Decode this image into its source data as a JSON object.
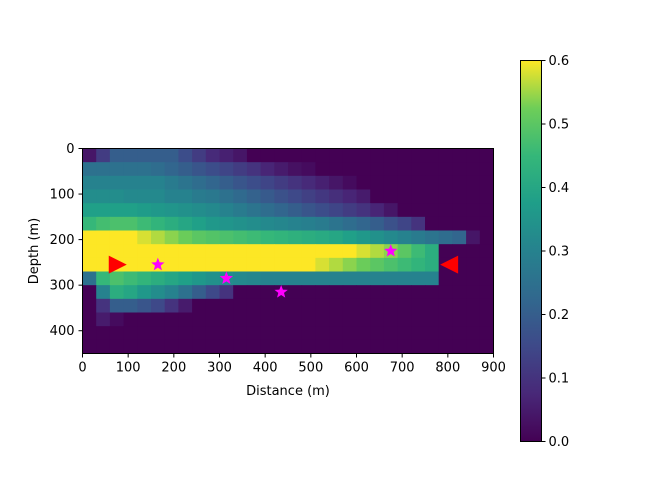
{
  "chart_data": {
    "type": "heatmap",
    "title": "",
    "xlabel": "Distance (m)",
    "ylabel": "Depth (m)",
    "xlim": [
      0,
      900
    ],
    "ylim": [
      450,
      0
    ],
    "xticks": [
      "0",
      "100",
      "200",
      "300",
      "400",
      "500",
      "600",
      "700",
      "800",
      "900"
    ],
    "yticks": [
      "0",
      "100",
      "200",
      "300",
      "400"
    ],
    "colormap": "viridis",
    "colorbar": {
      "range": [
        0,
        0.6
      ],
      "ticks": [
        "0.0",
        "0.1",
        "0.2",
        "0.3",
        "0.4",
        "0.5",
        "0.6"
      ]
    },
    "cell_size_m": 30,
    "grid_origin_m": [
      0,
      0
    ],
    "grid": [
      [
        0.04,
        0.12,
        0.2,
        0.2,
        0.2,
        0.2,
        0.2,
        0.16,
        0.12,
        0.08,
        0.06,
        0.04,
        0,
        0,
        0,
        0,
        0,
        0,
        0,
        0,
        0,
        0,
        0,
        0,
        0,
        0,
        0,
        0,
        0,
        0
      ],
      [
        0.25,
        0.25,
        0.25,
        0.25,
        0.25,
        0.24,
        0.22,
        0.2,
        0.18,
        0.16,
        0.14,
        0.12,
        0.1,
        0.07,
        0.05,
        0.03,
        0.02,
        0,
        0,
        0,
        0,
        0,
        0,
        0,
        0,
        0,
        0,
        0,
        0,
        0
      ],
      [
        0.3,
        0.3,
        0.3,
        0.3,
        0.3,
        0.3,
        0.28,
        0.26,
        0.24,
        0.22,
        0.2,
        0.18,
        0.16,
        0.14,
        0.12,
        0.1,
        0.08,
        0.06,
        0.04,
        0.02,
        0,
        0,
        0,
        0,
        0,
        0,
        0,
        0,
        0,
        0
      ],
      [
        0.33,
        0.33,
        0.33,
        0.32,
        0.32,
        0.32,
        0.3,
        0.3,
        0.28,
        0.27,
        0.25,
        0.23,
        0.21,
        0.19,
        0.17,
        0.15,
        0.13,
        0.11,
        0.09,
        0.07,
        0.05,
        0,
        0,
        0,
        0,
        0,
        0,
        0,
        0,
        0
      ],
      [
        0.38,
        0.38,
        0.38,
        0.38,
        0.37,
        0.36,
        0.35,
        0.34,
        0.33,
        0.32,
        0.3,
        0.28,
        0.26,
        0.24,
        0.22,
        0.2,
        0.18,
        0.16,
        0.14,
        0.12,
        0.1,
        0.07,
        0.04,
        0,
        0,
        0,
        0,
        0,
        0,
        0
      ],
      [
        0.45,
        0.47,
        0.48,
        0.48,
        0.46,
        0.44,
        0.42,
        0.4,
        0.38,
        0.36,
        0.35,
        0.34,
        0.33,
        0.32,
        0.31,
        0.3,
        0.29,
        0.28,
        0.26,
        0.24,
        0.22,
        0.2,
        0.17,
        0.14,
        0.1,
        0,
        0,
        0,
        0,
        0
      ],
      [
        0.6,
        0.6,
        0.6,
        0.6,
        0.58,
        0.56,
        0.54,
        0.52,
        0.5,
        0.49,
        0.48,
        0.47,
        0.46,
        0.45,
        0.44,
        0.43,
        0.42,
        0.41,
        0.4,
        0.38,
        0.36,
        0.34,
        0.32,
        0.3,
        0.28,
        0.26,
        0.24,
        0.22,
        0.04,
        0
      ],
      [
        0.6,
        0.6,
        0.6,
        0.6,
        0.6,
        0.6,
        0.6,
        0.6,
        0.6,
        0.6,
        0.6,
        0.6,
        0.6,
        0.6,
        0.6,
        0.6,
        0.6,
        0.6,
        0.6,
        0.6,
        0.58,
        0.56,
        0.54,
        0.5,
        0.46,
        0.42,
        0,
        0,
        0,
        0
      ],
      [
        0.6,
        0.6,
        0.6,
        0.6,
        0.6,
        0.6,
        0.6,
        0.6,
        0.6,
        0.6,
        0.6,
        0.6,
        0.6,
        0.6,
        0.6,
        0.6,
        0.6,
        0.58,
        0.56,
        0.54,
        0.52,
        0.5,
        0.48,
        0.46,
        0.44,
        0.42,
        0,
        0,
        0,
        0
      ],
      [
        0.25,
        0.45,
        0.48,
        0.46,
        0.44,
        0.42,
        0.4,
        0.38,
        0.36,
        0.34,
        0.33,
        0.32,
        0.31,
        0.3,
        0.3,
        0.3,
        0.3,
        0.3,
        0.3,
        0.3,
        0.3,
        0.3,
        0.3,
        0.3,
        0.3,
        0.3,
        0,
        0,
        0,
        0
      ],
      [
        0,
        0.3,
        0.42,
        0.4,
        0.36,
        0.33,
        0.3,
        0.25,
        0.2,
        0.15,
        0.1,
        0,
        0,
        0,
        0,
        0,
        0,
        0,
        0,
        0,
        0,
        0,
        0,
        0,
        0,
        0,
        0,
        0,
        0,
        0
      ],
      [
        0,
        0.1,
        0.2,
        0.2,
        0.18,
        0.15,
        0.1,
        0.05,
        0,
        0,
        0,
        0,
        0,
        0,
        0,
        0,
        0,
        0,
        0,
        0,
        0,
        0,
        0,
        0,
        0,
        0,
        0,
        0,
        0,
        0
      ],
      [
        0,
        0.05,
        0.02,
        0,
        0,
        0,
        0,
        0,
        0,
        0,
        0,
        0,
        0,
        0,
        0,
        0,
        0,
        0,
        0,
        0,
        0,
        0,
        0,
        0,
        0,
        0,
        0,
        0,
        0,
        0
      ],
      [
        0,
        0,
        0,
        0,
        0,
        0,
        0,
        0,
        0,
        0,
        0,
        0,
        0,
        0,
        0,
        0,
        0,
        0,
        0,
        0,
        0,
        0,
        0,
        0,
        0,
        0,
        0,
        0,
        0,
        0
      ],
      [
        0,
        0,
        0,
        0,
        0,
        0,
        0,
        0,
        0,
        0,
        0,
        0,
        0,
        0,
        0,
        0,
        0,
        0,
        0,
        0,
        0,
        0,
        0,
        0,
        0,
        0,
        0,
        0,
        0,
        0
      ]
    ],
    "markers": [
      {
        "kind": "triangle-right",
        "color": "#ff0000",
        "x": 75,
        "y": 255
      },
      {
        "kind": "triangle-left",
        "color": "#ff0000",
        "x": 805,
        "y": 255
      },
      {
        "kind": "star",
        "color": "#ff00ff",
        "x": 165,
        "y": 255
      },
      {
        "kind": "star",
        "color": "#ff00ff",
        "x": 315,
        "y": 285
      },
      {
        "kind": "star",
        "color": "#ff00ff",
        "x": 435,
        "y": 315
      },
      {
        "kind": "star",
        "color": "#ff00ff",
        "x": 675,
        "y": 225
      }
    ]
  }
}
